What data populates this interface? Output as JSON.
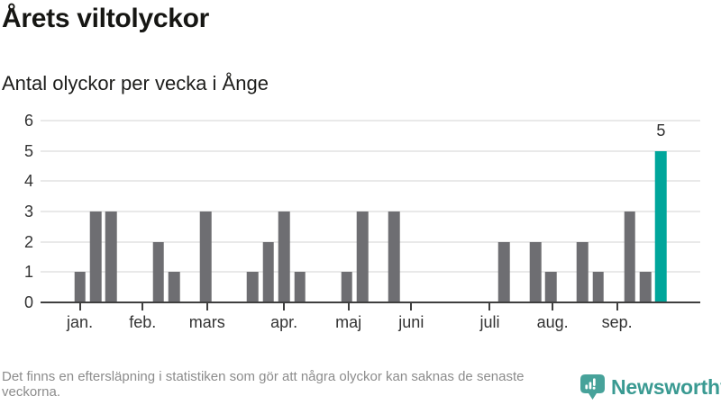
{
  "header": {
    "title": "Årets viltolyckor",
    "subtitle": "Antal olyckor per vecka i Ånge"
  },
  "chart_data": {
    "type": "bar",
    "title": "Årets viltolyckor",
    "subtitle": "Antal olyckor per vecka i Ånge",
    "x_unit": "vecka",
    "weeks": [
      0,
      0,
      1,
      3,
      3,
      0,
      0,
      2,
      1,
      0,
      3,
      0,
      0,
      1,
      2,
      3,
      1,
      0,
      0,
      1,
      3,
      0,
      3,
      0,
      0,
      0,
      0,
      0,
      0,
      2,
      0,
      2,
      1,
      0,
      2,
      1,
      0,
      3,
      1,
      5,
      0,
      0
    ],
    "highlight_index": 39,
    "highlight_value_label": "5",
    "months": [
      {
        "label": "jan.",
        "week": 2.0
      },
      {
        "label": "feb.",
        "week": 6.0
      },
      {
        "label": "mars",
        "week": 10.1
      },
      {
        "label": "apr.",
        "week": 15.0
      },
      {
        "label": "maj",
        "week": 19.1
      },
      {
        "label": "juni",
        "week": 23.1
      },
      {
        "label": "juli",
        "week": 28.1
      },
      {
        "label": "aug.",
        "week": 32.1
      },
      {
        "label": "sep.",
        "week": 36.2
      }
    ],
    "ylim": [
      0,
      6
    ],
    "y_ticks": [
      0,
      1,
      2,
      3,
      4,
      5,
      6
    ],
    "grid": true,
    "legend": false,
    "colors": {
      "bar": "#6e6e72",
      "highlight": "#00a69b",
      "grid": "#e9e9e9",
      "axis": "#3f3f3f"
    }
  },
  "footer": {
    "note": "Det finns en eftersläpning i statistiken som gör att några olyckor kan saknas de senaste veckorna.",
    "brand": "Newsworthy",
    "brand_color": "#3a9a92",
    "badge_color": "#47a29a"
  }
}
